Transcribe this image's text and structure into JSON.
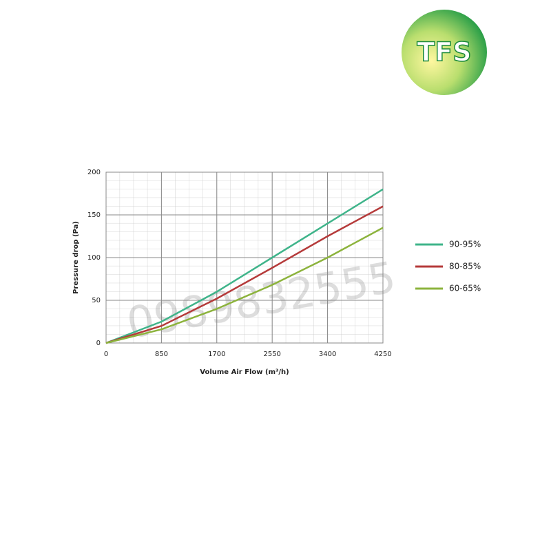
{
  "logo": "TFS",
  "watermark": "0989832555",
  "chart_data": {
    "type": "line",
    "x_label": "Volume Air Flow (m³/h)",
    "y_label": "Pressure drop (Pa)",
    "x": [
      0,
      850,
      1700,
      2550,
      3400,
      4250
    ],
    "series": [
      {
        "name": "90-95%",
        "color": "#3fb48a",
        "values": [
          0,
          25,
          60,
          100,
          140,
          180
        ]
      },
      {
        "name": "80-85%",
        "color": "#b53a3a",
        "values": [
          0,
          20,
          52,
          88,
          125,
          160
        ]
      },
      {
        "name": "60-65%",
        "color": "#8cb33c",
        "values": [
          0,
          16,
          40,
          68,
          100,
          135
        ]
      }
    ],
    "xlim": [
      0,
      4250
    ],
    "xticks": [
      0,
      850,
      1700,
      2550,
      3400,
      4250
    ],
    "ylim": [
      0,
      200
    ],
    "yticks": [
      0,
      50,
      100,
      150,
      200
    ],
    "grid": true,
    "legend": "right"
  }
}
